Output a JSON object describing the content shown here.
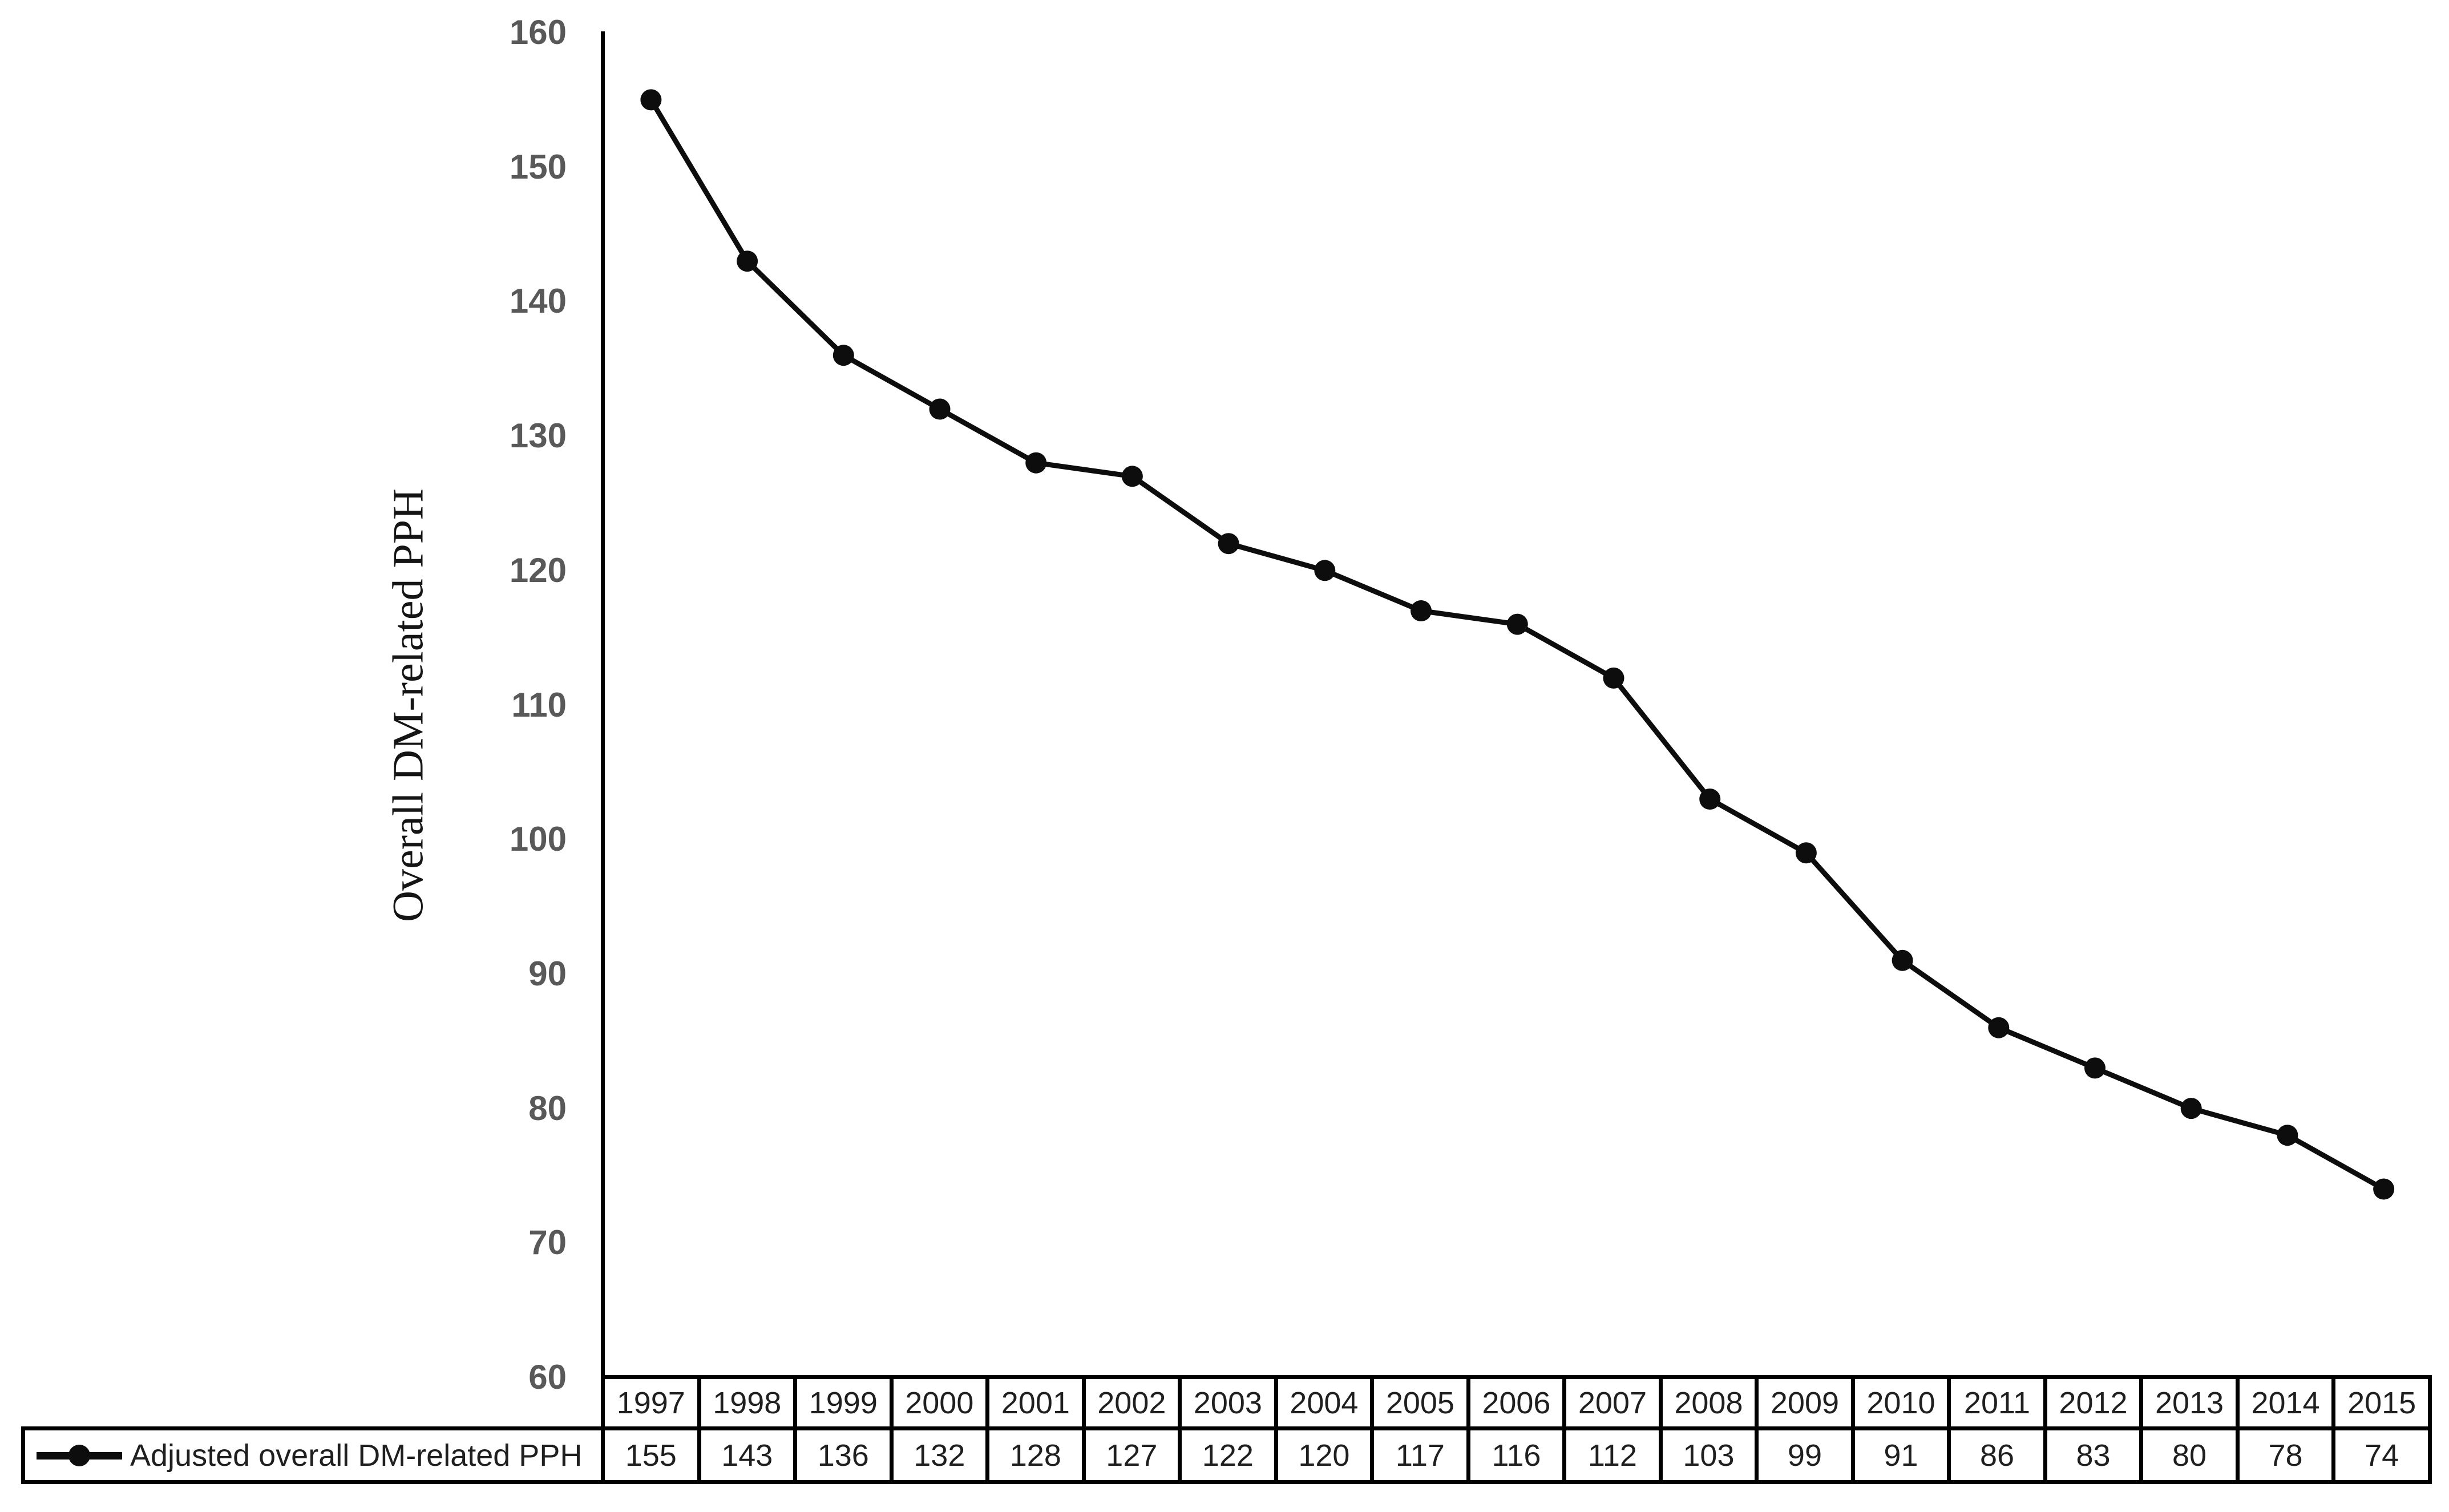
{
  "figure": {
    "type": "line-chart-with-data-table",
    "background": "#ffffff"
  },
  "y_axis": {
    "max": 160,
    "min": 60,
    "step": 10,
    "tick_labels": [
      "160",
      "150",
      "140",
      "130",
      "120",
      "110",
      "100",
      "90",
      "80",
      "70",
      "60"
    ]
  },
  "legend": {
    "label": "Adjusted overall DM-related PPH",
    "marker": "black-line-with-filled-circle"
  },
  "colors": {
    "line": "#0d0d0d",
    "marker": "#0d0d0d",
    "axis_line": "#000000",
    "tick_label": "#595959",
    "table_border": "#000000",
    "table_text": "#1f1f1f",
    "background": "#ffffff"
  },
  "chart_data": {
    "type": "line",
    "title": "",
    "xlabel": "",
    "ylabel": "Overall DM-related PPH",
    "x": [
      1997,
      1998,
      1999,
      2000,
      2001,
      2002,
      2003,
      2004,
      2005,
      2006,
      2007,
      2008,
      2009,
      2010,
      2011,
      2012,
      2013,
      2014,
      2015
    ],
    "series": [
      {
        "name": "Adjusted overall DM-related PPH",
        "values": [
          155,
          143,
          136,
          132,
          128,
          127,
          122,
          120,
          117,
          116,
          112,
          103,
          99,
          91,
          86,
          83,
          80,
          78,
          74
        ]
      }
    ],
    "ylim": [
      60,
      160
    ],
    "ytick_step": 10,
    "grid": false,
    "legend_position": "bottom-left-table",
    "marker": "circle",
    "table": {
      "columns": [
        "1997",
        "1998",
        "1999",
        "2000",
        "2001",
        "2002",
        "2003",
        "2004",
        "2005",
        "2006",
        "2007",
        "2008",
        "2009",
        "2010",
        "2011",
        "2012",
        "2013",
        "2014",
        "2015"
      ],
      "rows": [
        {
          "label": "Adjusted overall DM-related PPH",
          "values": [
            155,
            143,
            136,
            132,
            128,
            127,
            122,
            120,
            117,
            116,
            112,
            103,
            99,
            91,
            86,
            83,
            80,
            78,
            74
          ]
        }
      ]
    }
  }
}
